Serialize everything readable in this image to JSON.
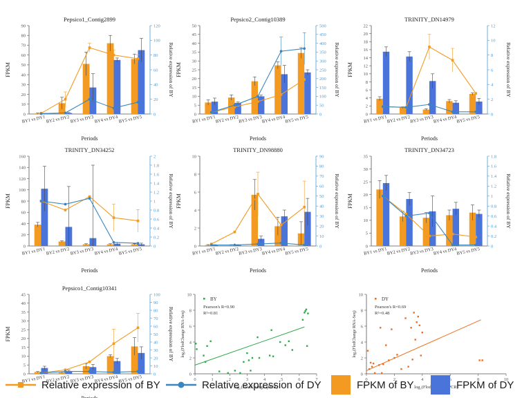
{
  "colors": {
    "orange": "#F29A21",
    "blue": "#4A74D9",
    "line_blue": "#3A86C0",
    "axis_right": "#4A9CD6",
    "scatter_green": "#2EA84A",
    "scatter_orange": "#F26B1C"
  },
  "legend": {
    "items": [
      {
        "label": "Relative expression of BY",
        "kind": "line-square",
        "color": "#F29A21"
      },
      {
        "label": "Relative expression of DY",
        "kind": "line-dot",
        "color": "#3A86C0"
      },
      {
        "label": "FPKM of BY",
        "kind": "box",
        "color": "#F29A21"
      },
      {
        "label": "FPKM of DY",
        "kind": "box",
        "color": "#4A74D9"
      }
    ]
  },
  "chart_data": [
    {
      "type": "bar",
      "title": "Pepsico1_Contig2899",
      "xlabel": "Periods",
      "ylabel": "FPKM",
      "y2label": "Relative expression of BY",
      "categories": [
        "BY1 vs DY1",
        "BY2 vs DY2",
        "BY3 vs DY3",
        "BY4 vs DY4",
        "BY5 vs DY5"
      ],
      "ylim": [
        0,
        90
      ],
      "yticks": [
        0,
        10,
        20,
        30,
        40,
        50,
        60,
        70,
        80,
        90
      ],
      "y2lim": [
        0,
        120
      ],
      "y2ticks": [
        0,
        20,
        40,
        60,
        80,
        100,
        120
      ],
      "series": [
        {
          "name": "FPKM of BY",
          "kind": "bar",
          "values": [
            0.5,
            11,
            51,
            72,
            56
          ],
          "errors": [
            0.5,
            6,
            12,
            8,
            5
          ]
        },
        {
          "name": "FPKM of DY",
          "kind": "bar",
          "values": [
            0.3,
            1,
            27,
            55,
            65
          ],
          "errors": [
            0.3,
            0.5,
            14,
            2,
            12
          ]
        },
        {
          "name": "Relative expression of BY",
          "kind": "line",
          "axis": "right",
          "values": [
            1,
            20,
            90,
            80,
            75
          ],
          "errors": [
            0,
            10,
            6,
            7,
            5
          ]
        },
        {
          "name": "Relative expression of DY",
          "kind": "line",
          "axis": "right",
          "values": [
            0.5,
            1.5,
            20,
            8,
            16
          ],
          "errors": [
            0,
            0,
            0,
            0,
            0
          ]
        }
      ]
    },
    {
      "type": "bar",
      "title": "Pepsico2_Contig10389",
      "xlabel": "Periods",
      "ylabel": "FPKM",
      "y2label": "Relative expression of BY",
      "categories": [
        "BY1 vs DY1",
        "BY2 vs DY2",
        "BY3 vs DY3",
        "BY4 vs DY4",
        "BY5 vs DY5"
      ],
      "ylim": [
        0,
        50
      ],
      "yticks": [
        0,
        5,
        10,
        15,
        20,
        25,
        30,
        35,
        40,
        45,
        50
      ],
      "y2lim": [
        0,
        500
      ],
      "y2ticks": [
        0,
        50,
        100,
        150,
        200,
        250,
        300,
        350,
        400,
        450,
        500
      ],
      "series": [
        {
          "name": "FPKM of BY",
          "kind": "bar",
          "values": [
            6.5,
            9.3,
            18.5,
            27.5,
            34.5
          ],
          "errors": [
            1.5,
            1.5,
            2.5,
            2,
            3
          ]
        },
        {
          "name": "FPKM of DY",
          "kind": "bar",
          "values": [
            7,
            6.3,
            10,
            22.5,
            23.5
          ],
          "errors": [
            2,
            0.5,
            0.7,
            5,
            1.5
          ]
        },
        {
          "name": "Relative expression of BY",
          "kind": "line",
          "axis": "right",
          "values": [
            10,
            40,
            70,
            110,
            195
          ],
          "errors": [
            0,
            0,
            0,
            0,
            0
          ]
        },
        {
          "name": "Relative expression of DY",
          "kind": "line",
          "axis": "right",
          "values": [
            10,
            50,
            100,
            355,
            370
          ],
          "errors": [
            0,
            0,
            0,
            80,
            90
          ]
        }
      ]
    },
    {
      "type": "bar",
      "title": "TRINITY_DN14979",
      "xlabel": "Periods",
      "ylabel": "FPKM",
      "y2label": "Relative expression of BY",
      "categories": [
        "BY1 vs DY1",
        "BY2 vs DY2",
        "BY3 vs DY3",
        "BY4 vs DY4",
        "BY5 vs DY5"
      ],
      "ylim": [
        0,
        22
      ],
      "yticks": [
        0,
        2,
        4,
        6,
        8,
        10,
        12,
        14,
        16,
        18,
        20,
        22
      ],
      "y2lim": [
        0,
        12
      ],
      "y2ticks": [
        0,
        2,
        4,
        6,
        8,
        10,
        12
      ],
      "series": [
        {
          "name": "FPKM of BY",
          "kind": "bar",
          "values": [
            3.8,
            1.6,
            1.1,
            3.2,
            5
          ],
          "errors": [
            0.5,
            0.2,
            0.2,
            0.4,
            0.3
          ]
        },
        {
          "name": "FPKM of DY",
          "kind": "bar",
          "values": [
            15.5,
            14.3,
            8.2,
            2.8,
            3.1
          ],
          "errors": [
            1.2,
            1.2,
            1.8,
            0.5,
            0.8
          ]
        },
        {
          "name": "Relative expression of BY",
          "kind": "line",
          "axis": "right",
          "values": [
            1,
            0.9,
            9.1,
            7.3,
            2.8
          ],
          "errors": [
            0,
            0,
            1.7,
            1.6,
            0
          ]
        },
        {
          "name": "Relative expression of DY",
          "kind": "line",
          "axis": "right",
          "values": [
            1,
            0.9,
            1.3,
            0.3,
            0.3
          ],
          "errors": [
            0,
            0,
            0,
            0,
            0
          ]
        }
      ]
    },
    {
      "type": "bar",
      "title": "TRINITY_DN34252",
      "xlabel": "Periods",
      "ylabel": "FPKM",
      "y2label": "Relative expression of BY",
      "categories": [
        "BY1 vs DY1",
        "BY2 vs DY2",
        "BY3 vs DY3",
        "BY4 vs DY4",
        "BY5 vs DY5"
      ],
      "ylim": [
        0,
        160
      ],
      "yticks": [
        0,
        20,
        40,
        60,
        80,
        100,
        120,
        140,
        160
      ],
      "y2lim": [
        0,
        2
      ],
      "y2ticks": [
        0,
        0.2,
        0.4,
        0.6,
        0.8,
        1,
        1.2,
        1.4,
        1.6,
        1.8,
        2
      ],
      "series": [
        {
          "name": "FPKM of BY",
          "kind": "bar",
          "values": [
            38,
            8,
            3,
            3,
            3
          ],
          "errors": [
            4,
            1,
            1,
            1,
            1
          ]
        },
        {
          "name": "FPKM of DY",
          "kind": "bar",
          "values": [
            102,
            34,
            14,
            4,
            3
          ],
          "errors": [
            40,
            72,
            130,
            2,
            2
          ]
        },
        {
          "name": "Relative expression of BY",
          "kind": "line",
          "axis": "right",
          "values": [
            1,
            0.8,
            1.1,
            0.63,
            0.56
          ],
          "errors": [
            0,
            0,
            0,
            0.3,
            0.25
          ]
        },
        {
          "name": "Relative expression of DY",
          "kind": "line",
          "axis": "right",
          "values": [
            1,
            0.93,
            1.06,
            0.08,
            0.06
          ],
          "errors": [
            0,
            0,
            0,
            0,
            0
          ]
        }
      ]
    },
    {
      "type": "bar",
      "title": "TRINITY_DN98880",
      "xlabel": "Periods",
      "ylabel": "FPKM",
      "y2label": "Relative expression of BY",
      "categories": [
        "BY1 vs DY1",
        "BY2 vs DY2",
        "BY3 vs DY3",
        "BY4 vs DY4",
        "BY5 vs DY5"
      ],
      "ylim": [
        0,
        10
      ],
      "yticks": [
        0,
        2,
        4,
        6,
        8,
        10
      ],
      "y2lim": [
        0,
        90
      ],
      "y2ticks": [
        0,
        10,
        20,
        30,
        40,
        50,
        60,
        70,
        80,
        90
      ],
      "series": [
        {
          "name": "FPKM of BY",
          "kind": "bar",
          "values": [
            0.1,
            0.1,
            5.7,
            2.2,
            1.4
          ],
          "errors": [
            0.05,
            0.05,
            1.7,
            1,
            1.3
          ]
        },
        {
          "name": "FPKM of DY",
          "kind": "bar",
          "values": [
            0.1,
            0.1,
            0.8,
            3.3,
            3.8
          ],
          "errors": [
            0.05,
            0.05,
            0.3,
            0.7,
            1.5
          ]
        },
        {
          "name": "Relative expression of BY",
          "kind": "line",
          "axis": "right",
          "values": [
            2,
            14,
            52,
            21,
            39
          ],
          "errors": [
            0,
            0,
            22,
            0,
            26
          ]
        },
        {
          "name": "Relative expression of DY",
          "kind": "line",
          "axis": "right",
          "values": [
            1,
            1,
            2,
            3,
            1
          ],
          "errors": [
            0,
            0,
            0,
            0,
            0
          ]
        }
      ]
    },
    {
      "type": "bar",
      "title": "TRINITY_DN34723",
      "xlabel": "Periods",
      "ylabel": "FPKM",
      "y2label": "Relative expression of BY",
      "categories": [
        "BY1 vs DY1",
        "BY2 vs DY2",
        "BY3 vs DY3",
        "BY4 vs DY4",
        "BY5 vs DY5"
      ],
      "ylim": [
        0,
        35
      ],
      "yticks": [
        0,
        5,
        10,
        15,
        20,
        25,
        30,
        35
      ],
      "y2lim": [
        0,
        1.8
      ],
      "y2ticks": [
        0,
        0.2,
        0.4,
        0.6,
        0.8,
        1,
        1.2,
        1.4,
        1.6,
        1.8
      ],
      "series": [
        {
          "name": "FPKM of BY",
          "kind": "bar",
          "values": [
            22,
            11.5,
            11,
            12,
            13
          ],
          "errors": [
            3.5,
            2,
            2,
            2,
            3
          ]
        },
        {
          "name": "FPKM of DY",
          "kind": "bar",
          "values": [
            24.5,
            18.3,
            13.5,
            14.5,
            12.5
          ],
          "errors": [
            3,
            2.5,
            6,
            2.5,
            1.5
          ]
        },
        {
          "name": "Relative expression of BY",
          "kind": "line",
          "axis": "right",
          "values": [
            1,
            0.64,
            0.2,
            0.24,
            0.18
          ],
          "errors": [
            0,
            0,
            0,
            0,
            0
          ]
        },
        {
          "name": "Relative expression of DY",
          "kind": "line",
          "axis": "right",
          "values": [
            1,
            0.6,
            0.66,
            0.02,
            0.02
          ],
          "errors": [
            0,
            0,
            0,
            0,
            0
          ]
        }
      ]
    },
    {
      "type": "bar",
      "title": "Pepsico1_Contig10341",
      "xlabel": "Periods",
      "ylabel": "FPKM",
      "y2label": "Relative expression of BY",
      "categories": [
        "BY1 vs DY1",
        "BY2 vs DY2",
        "BY3 vs DY3",
        "BY4 vs DY4",
        "BY5 vs DY5"
      ],
      "ylim": [
        0,
        45
      ],
      "yticks": [
        0,
        5,
        10,
        15,
        20,
        25,
        30,
        35,
        40,
        45
      ],
      "y2lim": [
        0,
        100
      ],
      "y2ticks": [
        0,
        10,
        20,
        30,
        40,
        50,
        60,
        70,
        80,
        90,
        100
      ],
      "series": [
        {
          "name": "FPKM of BY",
          "kind": "bar",
          "values": [
            1,
            0.8,
            4.3,
            10,
            15.5
          ],
          "errors": [
            0.3,
            0.3,
            1.5,
            0.8,
            5
          ]
        },
        {
          "name": "FPKM of DY",
          "kind": "bar",
          "values": [
            3.3,
            1.6,
            3.8,
            7.2,
            11.8
          ],
          "errors": [
            1,
            0.5,
            1.5,
            1.5,
            3.5
          ]
        },
        {
          "name": "Relative expression of BY",
          "kind": "line",
          "axis": "right",
          "values": [
            1,
            5,
            15,
            38,
            58
          ],
          "errors": [
            0,
            0,
            0,
            18,
            18
          ]
        },
        {
          "name": "Relative expression of DY",
          "kind": "line",
          "axis": "right",
          "values": [
            1,
            3,
            3,
            2,
            3
          ],
          "errors": [
            0,
            0,
            0,
            0,
            0
          ]
        }
      ]
    },
    {
      "type": "scatter",
      "title": "",
      "legend_label": "BY",
      "annotation_r": "Pearson's R=0.90",
      "annotation_r2": "R²=0.81",
      "xlabel": "log₂(FlodChange qPCR)",
      "ylabel": "log₂(FlodChange RNA-Seq)",
      "xlim": [
        0,
        7
      ],
      "xticks": [
        0,
        1,
        2,
        3,
        4,
        5,
        6,
        7
      ],
      "ylim": [
        0,
        10
      ],
      "yticks": [
        0,
        2,
        4,
        6,
        8,
        10
      ],
      "color": "#2EA84A",
      "x": [
        0.05,
        0.1,
        0.6,
        0.9,
        0.5,
        0.7,
        2.3,
        1.4,
        1.9,
        2.8,
        3.1,
        3.0,
        3.2,
        3.3,
        4.3,
        4.5,
        3.6,
        4.4,
        4.9,
        5.2,
        5.4,
        6.2,
        6.3,
        6.4,
        6.5,
        6.35,
        6.45,
        5.6,
        3.7,
        2.6
      ],
      "y": [
        3.8,
        3.1,
        1.5,
        4.1,
        2.3,
        3.5,
        0.4,
        0.3,
        0.1,
        1.5,
        1.7,
        2.6,
        0.4,
        2.0,
        2.3,
        2.2,
        4.6,
        5.5,
        4.0,
        3.6,
        4.1,
        6.8,
        7.7,
        8.1,
        7.6,
        7.9,
        3.5,
        3.0,
        2.0,
        0.1
      ],
      "fit": [
        [
          0,
          1.1
        ],
        [
          6.3,
          5.9
        ]
      ]
    },
    {
      "type": "scatter",
      "title": "",
      "legend_label": "DY",
      "annotation_r": "Pearson's R=0.69",
      "annotation_r2": "R²=0.48",
      "xlabel": "log₂(FlodChange qPCR)",
      "ylabel": "log₂(FlodChange RNA-Seq)",
      "xlim": [
        0,
        10
      ],
      "xticks": [
        0,
        2,
        4,
        6,
        8,
        10
      ],
      "ylim": [
        0,
        10
      ],
      "yticks": [
        0,
        2,
        4,
        6,
        8,
        10
      ],
      "color": "#F26B1C",
      "x": [
        0.1,
        0.2,
        0.3,
        0.5,
        0.6,
        0.9,
        1.0,
        1.2,
        1.4,
        1.6,
        1.8,
        2.0,
        2.2,
        2.5,
        2.8,
        3.0,
        3.2,
        3.4,
        3.5,
        3.6,
        3.7,
        3.8,
        4.0,
        3.3,
        3.9,
        8.1,
        8.3,
        1.1,
        0.4
      ],
      "y": [
        2.9,
        0.6,
        1.4,
        1.3,
        0.1,
        1.1,
        5.8,
        1.2,
        3.6,
        1.7,
        5.6,
        2.0,
        2.4,
        0.6,
        7.0,
        0.9,
        5.8,
        7.7,
        4.3,
        6.5,
        7.2,
        6.1,
        5.2,
        1.8,
        2.3,
        1.7,
        1.7,
        0.1,
        0.9
      ],
      "fit": [
        [
          0,
          0.4
        ],
        [
          8.2,
          6.8
        ]
      ]
    }
  ]
}
